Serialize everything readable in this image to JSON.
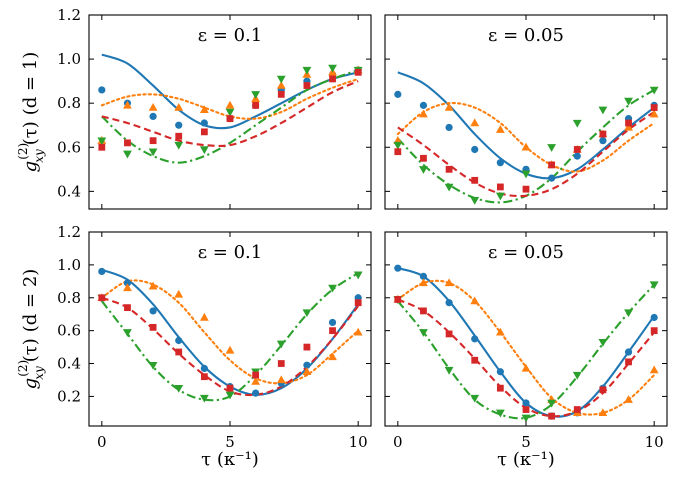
{
  "chart_data": {
    "type": "line",
    "xlabel": "τ (κ⁻¹)",
    "ylabel_rows": [
      "g_xy^(2)(τ) (d = 1)",
      "g_xy^(2)(τ) (d = 2)"
    ],
    "ylabel_parts": {
      "g": "g",
      "sup": "(2)",
      "sub": "xy",
      "arg": "(τ)"
    },
    "row_labels": [
      "(d = 1)",
      "(d = 2)"
    ],
    "xlim": [
      -0.5,
      10.5
    ],
    "ylim": [
      0.32,
      1.2
    ],
    "ylim_row2": [
      0.02,
      1.2
    ],
    "xticks": [
      0,
      5,
      10
    ],
    "yticks": [
      0.4,
      0.6,
      0.8,
      1.0,
      1.2
    ],
    "yticks_row2": [
      0.2,
      0.4,
      0.6,
      0.8,
      1.0,
      1.2
    ],
    "x": [
      0,
      1,
      2,
      3,
      4,
      5,
      6,
      7,
      8,
      9,
      10
    ],
    "series_styles": [
      {
        "name": "blue",
        "color": "#1f77b4",
        "line": "solid",
        "marker": "circle"
      },
      {
        "name": "orange",
        "color": "#ff7f0e",
        "line": "dotted",
        "marker": "triangle-up"
      },
      {
        "name": "green",
        "color": "#2ca02c",
        "line": "dashdot",
        "marker": "triangle-down"
      },
      {
        "name": "red",
        "color": "#d62728",
        "line": "dashed",
        "marker": "square"
      }
    ],
    "panels": [
      {
        "title": "ε = 0.1",
        "eps": "0.1",
        "row": 0,
        "col": 0,
        "series": [
          {
            "name": "blue",
            "curve": [
              1.02,
              0.98,
              0.88,
              0.77,
              0.7,
              0.69,
              0.74,
              0.8,
              0.86,
              0.91,
              0.94
            ],
            "points": [
              0.86,
              0.8,
              0.74,
              0.7,
              0.71,
              0.73,
              0.79,
              0.86,
              0.9,
              0.93,
              0.95
            ]
          },
          {
            "name": "orange",
            "curve": [
              0.79,
              0.83,
              0.84,
              0.82,
              0.78,
              0.74,
              0.73,
              0.76,
              0.82,
              0.87,
              0.91
            ],
            "points": [
              0.63,
              0.79,
              0.78,
              0.78,
              0.77,
              0.79,
              0.82,
              0.88,
              0.93,
              0.94,
              0.95
            ]
          },
          {
            "name": "green",
            "curve": [
              0.74,
              0.63,
              0.56,
              0.53,
              0.56,
              0.62,
              0.7,
              0.78,
              0.86,
              0.91,
              0.95
            ],
            "points": [
              0.63,
              0.57,
              0.58,
              0.61,
              0.59,
              0.76,
              0.84,
              0.91,
              0.95,
              0.96,
              0.95
            ]
          },
          {
            "name": "red",
            "curve": [
              0.74,
              0.71,
              0.67,
              0.63,
              0.61,
              0.61,
              0.65,
              0.71,
              0.78,
              0.85,
              0.9
            ],
            "points": [
              0.6,
              0.62,
              0.63,
              0.65,
              0.67,
              0.73,
              0.79,
              0.84,
              0.88,
              0.91,
              0.94
            ]
          }
        ]
      },
      {
        "title": "ε = 0.05",
        "eps": "0.05",
        "row": 0,
        "col": 1,
        "series": [
          {
            "name": "blue",
            "curve": [
              0.94,
              0.89,
              0.79,
              0.66,
              0.55,
              0.48,
              0.46,
              0.5,
              0.59,
              0.69,
              0.78
            ],
            "points": [
              0.84,
              0.79,
              0.69,
              0.59,
              0.53,
              0.5,
              0.46,
              0.56,
              0.63,
              0.73,
              0.79
            ]
          },
          {
            "name": "orange",
            "curve": [
              0.66,
              0.76,
              0.8,
              0.78,
              0.71,
              0.6,
              0.52,
              0.49,
              0.54,
              0.63,
              0.71
            ],
            "points": [
              0.63,
              0.75,
              0.78,
              0.71,
              0.68,
              0.6,
              0.52,
              0.59,
              0.66,
              0.69,
              0.75
            ]
          },
          {
            "name": "green",
            "curve": [
              0.64,
              0.52,
              0.43,
              0.37,
              0.35,
              0.38,
              0.46,
              0.58,
              0.69,
              0.79,
              0.86
            ],
            "points": [
              0.61,
              0.5,
              0.42,
              0.36,
              0.38,
              0.48,
              0.6,
              0.71,
              0.77,
              0.81,
              0.86
            ]
          },
          {
            "name": "red",
            "curve": [
              0.69,
              0.61,
              0.52,
              0.44,
              0.39,
              0.38,
              0.41,
              0.48,
              0.58,
              0.68,
              0.76
            ],
            "points": [
              0.58,
              0.55,
              0.5,
              0.45,
              0.42,
              0.41,
              0.52,
              0.59,
              0.66,
              0.71,
              0.78
            ]
          }
        ]
      },
      {
        "title": "ε = 0.1",
        "eps": "0.1",
        "row": 1,
        "col": 0,
        "series": [
          {
            "name": "blue",
            "curve": [
              0.97,
              0.91,
              0.76,
              0.56,
              0.38,
              0.26,
              0.21,
              0.25,
              0.37,
              0.55,
              0.76
            ],
            "points": [
              0.96,
              0.89,
              0.72,
              0.54,
              0.37,
              0.26,
              0.22,
              0.28,
              0.39,
              0.65,
              0.8
            ]
          },
          {
            "name": "orange",
            "curve": [
              0.8,
              0.9,
              0.88,
              0.77,
              0.59,
              0.42,
              0.31,
              0.28,
              0.33,
              0.46,
              0.6
            ],
            "points": [
              0.8,
              0.86,
              0.87,
              0.82,
              0.68,
              0.48,
              0.29,
              0.3,
              0.35,
              0.44,
              0.59
            ]
          },
          {
            "name": "green",
            "curve": [
              0.78,
              0.58,
              0.38,
              0.24,
              0.18,
              0.2,
              0.33,
              0.51,
              0.7,
              0.85,
              0.95
            ],
            "points": [
              0.8,
              0.59,
              0.39,
              0.25,
              0.19,
              0.21,
              0.35,
              0.52,
              0.71,
              0.86,
              0.94
            ]
          },
          {
            "name": "red",
            "curve": [
              0.8,
              0.74,
              0.61,
              0.46,
              0.33,
              0.23,
              0.21,
              0.26,
              0.38,
              0.55,
              0.75
            ],
            "points": [
              0.8,
              0.74,
              0.62,
              0.47,
              0.32,
              0.25,
              0.33,
              0.4,
              0.5,
              0.6,
              0.77
            ]
          }
        ]
      },
      {
        "title": "ε = 0.05",
        "eps": "0.05",
        "row": 1,
        "col": 1,
        "series": [
          {
            "name": "blue",
            "curve": [
              0.98,
              0.93,
              0.78,
              0.57,
              0.35,
              0.16,
              0.08,
              0.11,
              0.26,
              0.47,
              0.69
            ],
            "points": [
              0.98,
              0.93,
              0.77,
              0.55,
              0.35,
              0.16,
              0.08,
              0.1,
              0.25,
              0.47,
              0.68
            ]
          },
          {
            "name": "orange",
            "curve": [
              0.79,
              0.89,
              0.89,
              0.78,
              0.59,
              0.38,
              0.19,
              0.1,
              0.1,
              0.18,
              0.33
            ],
            "points": [
              0.79,
              0.89,
              0.89,
              0.78,
              0.59,
              0.37,
              0.18,
              0.1,
              0.1,
              0.18,
              0.36
            ]
          },
          {
            "name": "green",
            "curve": [
              0.78,
              0.59,
              0.37,
              0.18,
              0.09,
              0.07,
              0.15,
              0.32,
              0.52,
              0.71,
              0.88
            ],
            "points": [
              0.79,
              0.59,
              0.36,
              0.19,
              0.1,
              0.07,
              0.16,
              0.33,
              0.53,
              0.71,
              0.88
            ]
          },
          {
            "name": "red",
            "curve": [
              0.79,
              0.72,
              0.59,
              0.43,
              0.26,
              0.13,
              0.08,
              0.11,
              0.22,
              0.4,
              0.59
            ],
            "points": [
              0.79,
              0.72,
              0.58,
              0.42,
              0.25,
              0.12,
              0.08,
              0.12,
              0.24,
              0.41,
              0.6
            ]
          }
        ]
      }
    ]
  }
}
